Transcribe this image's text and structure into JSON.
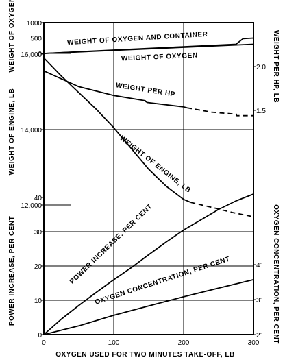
{
  "chart_data": {
    "type": "line",
    "title": "",
    "x_axis": {
      "label": "OXYGEN USED FOR TWO MINUTES TAKE-OFF, LB",
      "range": [
        0,
        300
      ],
      "ticks": [
        0,
        100,
        200,
        300
      ],
      "grid": true
    },
    "left_axes": {
      "oxygen_weight": {
        "label": "WEIGHT OF OXYGEN, LB",
        "range": [
          0,
          1000
        ],
        "ticks": [
          {
            "value": 1000,
            "label": "1000"
          },
          {
            "value": 500,
            "label": "500"
          },
          {
            "value": 0,
            "label": "0"
          }
        ]
      },
      "engine_weight": {
        "label": "WEIGHT OF ENGINE, LB",
        "range": [
          11800,
          16000
        ],
        "ticks": [
          {
            "value": 16000,
            "label": "16,000"
          },
          {
            "value": 14000,
            "label": "14,000"
          },
          {
            "value": 12000,
            "label": "12,000"
          }
        ]
      },
      "power_increase": {
        "label": "POWER INCREASE, PER CENT",
        "range": [
          0,
          41
        ],
        "ticks": [
          {
            "value": 40,
            "label": "40"
          },
          {
            "value": 30,
            "label": "30"
          },
          {
            "value": 20,
            "label": "20"
          },
          {
            "value": 10,
            "label": "10"
          },
          {
            "value": 0,
            "label": "0"
          }
        ]
      }
    },
    "right_axes": {
      "weight_per_hp": {
        "label": "WEIGHT PER HP, LB",
        "range": [
          1.0,
          2.0
        ],
        "ticks": [
          {
            "value": 2.0,
            "label": "2.0"
          },
          {
            "value": 1.5,
            "label": "1.5"
          }
        ]
      },
      "oxygen_concentration": {
        "label": "OXYGEN CONCENTRATION, PER CENT",
        "range": [
          21,
          41
        ],
        "ticks": [
          {
            "value": 41,
            "label": "41"
          },
          {
            "value": 31,
            "label": "31"
          },
          {
            "value": 21,
            "label": "21"
          }
        ]
      }
    },
    "series": [
      {
        "name": "WEIGHT OF OXYGEN AND CONTAINER",
        "axis": "oxygen_weight",
        "style": "solid",
        "points": [
          [
            0,
            0
          ],
          [
            100,
            110
          ],
          [
            200,
            220
          ],
          [
            275,
            300
          ],
          [
            285,
            480
          ],
          [
            300,
            500
          ]
        ]
      },
      {
        "name": "WEIGHT OF OXYGEN",
        "axis": "oxygen_weight",
        "style": "solid",
        "points": [
          [
            0,
            0
          ],
          [
            300,
            300
          ]
        ]
      },
      {
        "name": "WEIGHT PER HP",
        "axis": "weight_per_hp",
        "segments": [
          {
            "style": "solid",
            "points": [
              [
                0,
                1.95
              ],
              [
                50,
                1.77
              ],
              [
                100,
                1.67
              ],
              [
                145,
                1.61
              ],
              [
                146,
                1.6
              ],
              [
                148,
                1.59
              ],
              [
                200,
                1.54
              ],
              [
                205,
                1.53
              ]
            ]
          },
          {
            "style": "dashed",
            "points": [
              [
                205,
                1.53
              ],
              [
                240,
                1.48
              ],
              [
                270,
                1.46
              ],
              [
                275,
                1.46
              ],
              [
                276,
                1.44
              ],
              [
                300,
                1.44
              ]
            ]
          }
        ]
      },
      {
        "name": "WEIGHT OF ENGINE, LB",
        "axis": "engine_weight",
        "segments": [
          {
            "style": "solid",
            "points": [
              [
                0,
                15900
              ],
              [
                25,
                15420
              ],
              [
                50,
                14980
              ],
              [
                75,
                14540
              ],
              [
                100,
                14050
              ],
              [
                125,
                13500
              ],
              [
                150,
                12950
              ],
              [
                175,
                12500
              ],
              [
                200,
                12150
              ],
              [
                210,
                12070
              ]
            ]
          },
          {
            "style": "dashed",
            "points": [
              [
                210,
                12070
              ],
              [
                240,
                11940
              ],
              [
                270,
                11800
              ],
              [
                300,
                11690
              ]
            ]
          }
        ]
      },
      {
        "name": "POWER INCREASE, PER CENT",
        "axis": "power_increase",
        "style": "solid",
        "points": [
          [
            0,
            0
          ],
          [
            25,
            4.5
          ],
          [
            50,
            8.5
          ],
          [
            75,
            12.3
          ],
          [
            100,
            16
          ],
          [
            125,
            19.5
          ],
          [
            150,
            23.3
          ],
          [
            175,
            27
          ],
          [
            200,
            30.5
          ],
          [
            225,
            33.5
          ],
          [
            250,
            36.5
          ],
          [
            275,
            39
          ],
          [
            300,
            41
          ]
        ]
      },
      {
        "name": "OXYGEN CONCENTRATION, PER CENT",
        "axis": "oxygen_concentration",
        "style": "solid",
        "points": [
          [
            0,
            21
          ],
          [
            50,
            23.5
          ],
          [
            100,
            26.5
          ],
          [
            150,
            29.2
          ],
          [
            200,
            31.8
          ],
          [
            250,
            34.3
          ],
          [
            300,
            36.7
          ]
        ]
      }
    ],
    "grid": true,
    "legend": "none"
  }
}
